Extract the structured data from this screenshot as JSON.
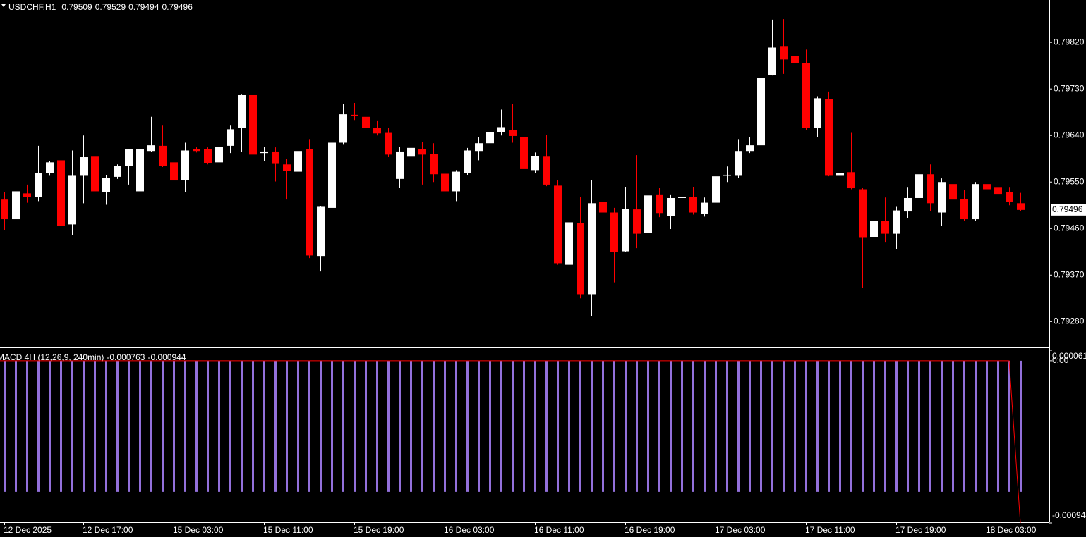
{
  "chart_data": [
    {
      "type": "candlestick",
      "title": "USDCHF,H1",
      "bull_color": "#ffffff",
      "bear_color": "#ff0000",
      "categories": [
        "12 Dec 2025",
        null,
        null,
        null,
        null,
        null,
        null,
        "12 Dec 17:00",
        null,
        null,
        null,
        null,
        null,
        null,
        null,
        "15 Dec 03:00",
        null,
        null,
        null,
        null,
        null,
        null,
        null,
        "15 Dec 11:00",
        null,
        null,
        null,
        null,
        null,
        null,
        null,
        "15 Dec 19:00",
        null,
        null,
        null,
        null,
        null,
        null,
        null,
        "16 Dec 03:00",
        null,
        null,
        null,
        null,
        null,
        null,
        null,
        "16 Dec 11:00",
        null,
        null,
        null,
        null,
        null,
        null,
        null,
        "16 Dec 19:00",
        null,
        null,
        null,
        null,
        null,
        null,
        null,
        "17 Dec 03:00",
        null,
        null,
        null,
        null,
        null,
        null,
        null,
        "17 Dec 11:00",
        null,
        null,
        null,
        null,
        null,
        null,
        null,
        "17 Dec 19:00",
        null,
        null,
        null,
        null,
        null,
        null,
        null,
        "18 Dec 03:00",
        null,
        null,
        null
      ],
      "open": [
        0.79516,
        0.79478,
        0.79528,
        0.79521,
        0.79568,
        0.79592,
        0.79468,
        0.79562,
        0.79599,
        0.79531,
        0.7956,
        0.79581,
        0.79532,
        0.7961,
        0.7962,
        0.79588,
        0.79554,
        0.79614,
        0.79614,
        0.79588,
        0.7962,
        0.79654,
        0.79718,
        0.79606,
        0.79609,
        0.79584,
        0.7957,
        0.79614,
        0.79407,
        0.795,
        0.79626,
        0.7968,
        0.79676,
        0.79654,
        0.79645,
        0.79556,
        0.79599,
        0.79614,
        0.79604,
        0.79566,
        0.79532,
        0.79568,
        0.7961,
        0.79625,
        0.79647,
        0.79651,
        0.79637,
        0.79573,
        0.79599,
        0.79543,
        0.7939,
        0.79471,
        0.79333,
        0.79512,
        0.79491,
        0.79416,
        0.79497,
        0.79452,
        0.79526,
        0.79484,
        0.79519,
        0.79521,
        0.79489,
        0.7951,
        0.79562,
        0.79562,
        0.7961,
        0.79621,
        0.79757,
        0.79813,
        0.79793,
        0.7978,
        0.79654,
        0.79711,
        0.79562,
        0.79569,
        0.79536,
        0.79444,
        0.79475,
        0.7945,
        0.79493,
        0.79519,
        0.79565,
        0.79491,
        0.79546,
        0.79517,
        0.79478,
        0.79546,
        0.79539,
        0.7953,
        0.79509
      ],
      "high": [
        0.7953,
        0.7954,
        0.79545,
        0.7962,
        0.79591,
        0.79624,
        0.79611,
        0.7964,
        0.7962,
        0.79564,
        0.79584,
        0.79614,
        0.79616,
        0.79676,
        0.79659,
        0.79609,
        0.79626,
        0.79617,
        0.79617,
        0.79636,
        0.79659,
        0.79719,
        0.7973,
        0.79618,
        0.79617,
        0.79595,
        0.79611,
        0.79633,
        0.79504,
        0.79633,
        0.79701,
        0.79703,
        0.79727,
        0.79669,
        0.79655,
        0.79618,
        0.79633,
        0.79628,
        0.79625,
        0.79575,
        0.79573,
        0.79616,
        0.79637,
        0.79686,
        0.7969,
        0.79701,
        0.79663,
        0.79607,
        0.79641,
        0.79554,
        0.79565,
        0.79521,
        0.79553,
        0.7956,
        0.795,
        0.7954,
        0.79602,
        0.79536,
        0.79538,
        0.79526,
        0.79524,
        0.7954,
        0.7952,
        0.79583,
        0.7958,
        0.79633,
        0.79637,
        0.79768,
        0.79864,
        0.79865,
        0.79868,
        0.79806,
        0.79716,
        0.79725,
        0.79632,
        0.79645,
        0.79538,
        0.7949,
        0.7952,
        0.79502,
        0.79539,
        0.7957,
        0.79584,
        0.79557,
        0.79553,
        0.79534,
        0.7955,
        0.7955,
        0.79551,
        0.79539,
        0.79529
      ],
      "low": [
        0.79457,
        0.79472,
        0.7951,
        0.79513,
        0.79562,
        0.79459,
        0.79448,
        0.79509,
        0.79524,
        0.79506,
        0.79556,
        0.79545,
        0.79531,
        0.79609,
        0.79579,
        0.79535,
        0.7953,
        0.79607,
        0.79584,
        0.79584,
        0.79606,
        0.79609,
        0.79599,
        0.79591,
        0.79551,
        0.79516,
        0.79536,
        0.79403,
        0.79377,
        0.79495,
        0.79622,
        0.7967,
        0.79645,
        0.7964,
        0.79598,
        0.79538,
        0.79592,
        0.79545,
        0.7955,
        0.79527,
        0.79513,
        0.79564,
        0.79592,
        0.79618,
        0.7964,
        0.79626,
        0.79557,
        0.79568,
        0.79542,
        0.7939,
        0.79254,
        0.79325,
        0.7929,
        0.79487,
        0.79356,
        0.79414,
        0.79422,
        0.7941,
        0.79482,
        0.79459,
        0.79506,
        0.79487,
        0.79483,
        0.79509,
        0.7955,
        0.79558,
        0.79606,
        0.79617,
        0.79756,
        0.79759,
        0.79714,
        0.79651,
        0.79637,
        0.79561,
        0.79504,
        0.79536,
        0.79345,
        0.79426,
        0.79433,
        0.7942,
        0.7948,
        0.79515,
        0.79493,
        0.79465,
        0.79512,
        0.79475,
        0.79475,
        0.79534,
        0.7952,
        0.79505,
        0.79494
      ],
      "close": [
        0.79478,
        0.79532,
        0.79521,
        0.79568,
        0.79588,
        0.79465,
        0.79562,
        0.79598,
        0.79532,
        0.79558,
        0.79581,
        0.79613,
        0.79613,
        0.79621,
        0.79581,
        0.79553,
        0.79611,
        0.7961,
        0.79587,
        0.79618,
        0.79652,
        0.79718,
        0.79603,
        0.79609,
        0.79585,
        0.79572,
        0.7961,
        0.79408,
        0.79502,
        0.79626,
        0.79681,
        0.79678,
        0.79654,
        0.79644,
        0.79603,
        0.79609,
        0.79616,
        0.79603,
        0.79565,
        0.79532,
        0.7957,
        0.79611,
        0.79625,
        0.79647,
        0.79656,
        0.79639,
        0.79575,
        0.796,
        0.79545,
        0.79393,
        0.79472,
        0.79333,
        0.79509,
        0.79491,
        0.79415,
        0.79498,
        0.7945,
        0.79524,
        0.7949,
        0.79519,
        0.79521,
        0.79491,
        0.7951,
        0.79561,
        0.79564,
        0.7961,
        0.79621,
        0.79752,
        0.7981,
        0.79787,
        0.7978,
        0.79655,
        0.79712,
        0.79562,
        0.79568,
        0.79538,
        0.79442,
        0.79475,
        0.7945,
        0.79495,
        0.79519,
        0.79565,
        0.79509,
        0.7955,
        0.79516,
        0.79478,
        0.79546,
        0.79536,
        0.79527,
        0.79512,
        0.79496
      ],
      "ylim": [
        0.7923,
        0.79902
      ],
      "yticks": [
        {
          "value": 0.7982,
          "label": "0.79820"
        },
        {
          "value": 0.7973,
          "label": "0.79730"
        },
        {
          "value": 0.7964,
          "label": "0.79640"
        },
        {
          "value": 0.7955,
          "label": "0.79550"
        },
        {
          "value": 0.7946,
          "label": "0.79460"
        },
        {
          "value": 0.7937,
          "label": "0.79370"
        },
        {
          "value": 0.7928,
          "label": "0.79280"
        }
      ]
    },
    {
      "type": "macd",
      "title": "MACD 4H (12,26,9, 240min)",
      "ylim": [
        -0.000944,
        6.1e-05
      ],
      "yticks": [
        6.1e-05,
        {
          "value": 0,
          "label": "0.00"
        },
        -0.000944
      ],
      "series": [
        {
          "style": "bar",
          "color": "#9370db",
          "values": [
            -0.000763,
            -0.000763,
            -0.000763,
            -0.000763,
            -0.000763,
            -0.000763,
            -0.000763,
            -0.000763,
            -0.000763,
            -0.000763,
            -0.000763,
            -0.000763,
            -0.000763,
            -0.000763,
            -0.000763,
            -0.000763,
            -0.000763,
            -0.000763,
            -0.000763,
            -0.000763,
            -0.000763,
            -0.000763,
            -0.000763,
            -0.000763,
            -0.000763,
            -0.000763,
            -0.000763,
            -0.000763,
            -0.000763,
            -0.000763,
            -0.000763,
            -0.000763,
            -0.000763,
            -0.000763,
            -0.000763,
            -0.000763,
            -0.000763,
            -0.000763,
            -0.000763,
            -0.000763,
            -0.000763,
            -0.000763,
            -0.000763,
            -0.000763,
            -0.000763,
            -0.000763,
            -0.000763,
            -0.000763,
            -0.000763,
            -0.000763,
            -0.000763,
            -0.000763,
            -0.000763,
            -0.000763,
            -0.000763,
            -0.000763,
            -0.000763,
            -0.000763,
            -0.000763,
            -0.000763,
            -0.000763,
            -0.000763,
            -0.000763,
            -0.000763,
            -0.000763,
            -0.000763,
            -0.000763,
            -0.000763,
            -0.000763,
            -0.000763,
            -0.000763,
            -0.000763,
            -0.000763,
            -0.000763,
            -0.000763,
            -0.000763,
            -0.000763,
            -0.000763,
            -0.000763,
            -0.000763,
            -0.000763,
            -0.000763,
            -0.000763,
            -0.000763,
            -0.000763,
            -0.000763,
            -0.000763,
            -0.000763,
            -0.000763,
            -0.000763,
            -0.000763
          ]
        },
        {
          "style": "line",
          "color": "#ff0000",
          "values": [
            0,
            0,
            0,
            0,
            0,
            0,
            0,
            0,
            0,
            0,
            0,
            0,
            0,
            0,
            0,
            0,
            0,
            0,
            0,
            0,
            0,
            0,
            0,
            0,
            0,
            0,
            0,
            0,
            0,
            0,
            0,
            0,
            0,
            0,
            0,
            0,
            0,
            0,
            0,
            0,
            0,
            0,
            0,
            0,
            0,
            0,
            0,
            0,
            0,
            0,
            0,
            0,
            0,
            0,
            0,
            0,
            0,
            0,
            0,
            0,
            0,
            0,
            0,
            0,
            0,
            0,
            0,
            0,
            0,
            0,
            0,
            0,
            0,
            0,
            0,
            0,
            0,
            0,
            0,
            0,
            0,
            0,
            0,
            0,
            0,
            0,
            0,
            0,
            0,
            0,
            -0.000944
          ]
        }
      ]
    }
  ]
}
